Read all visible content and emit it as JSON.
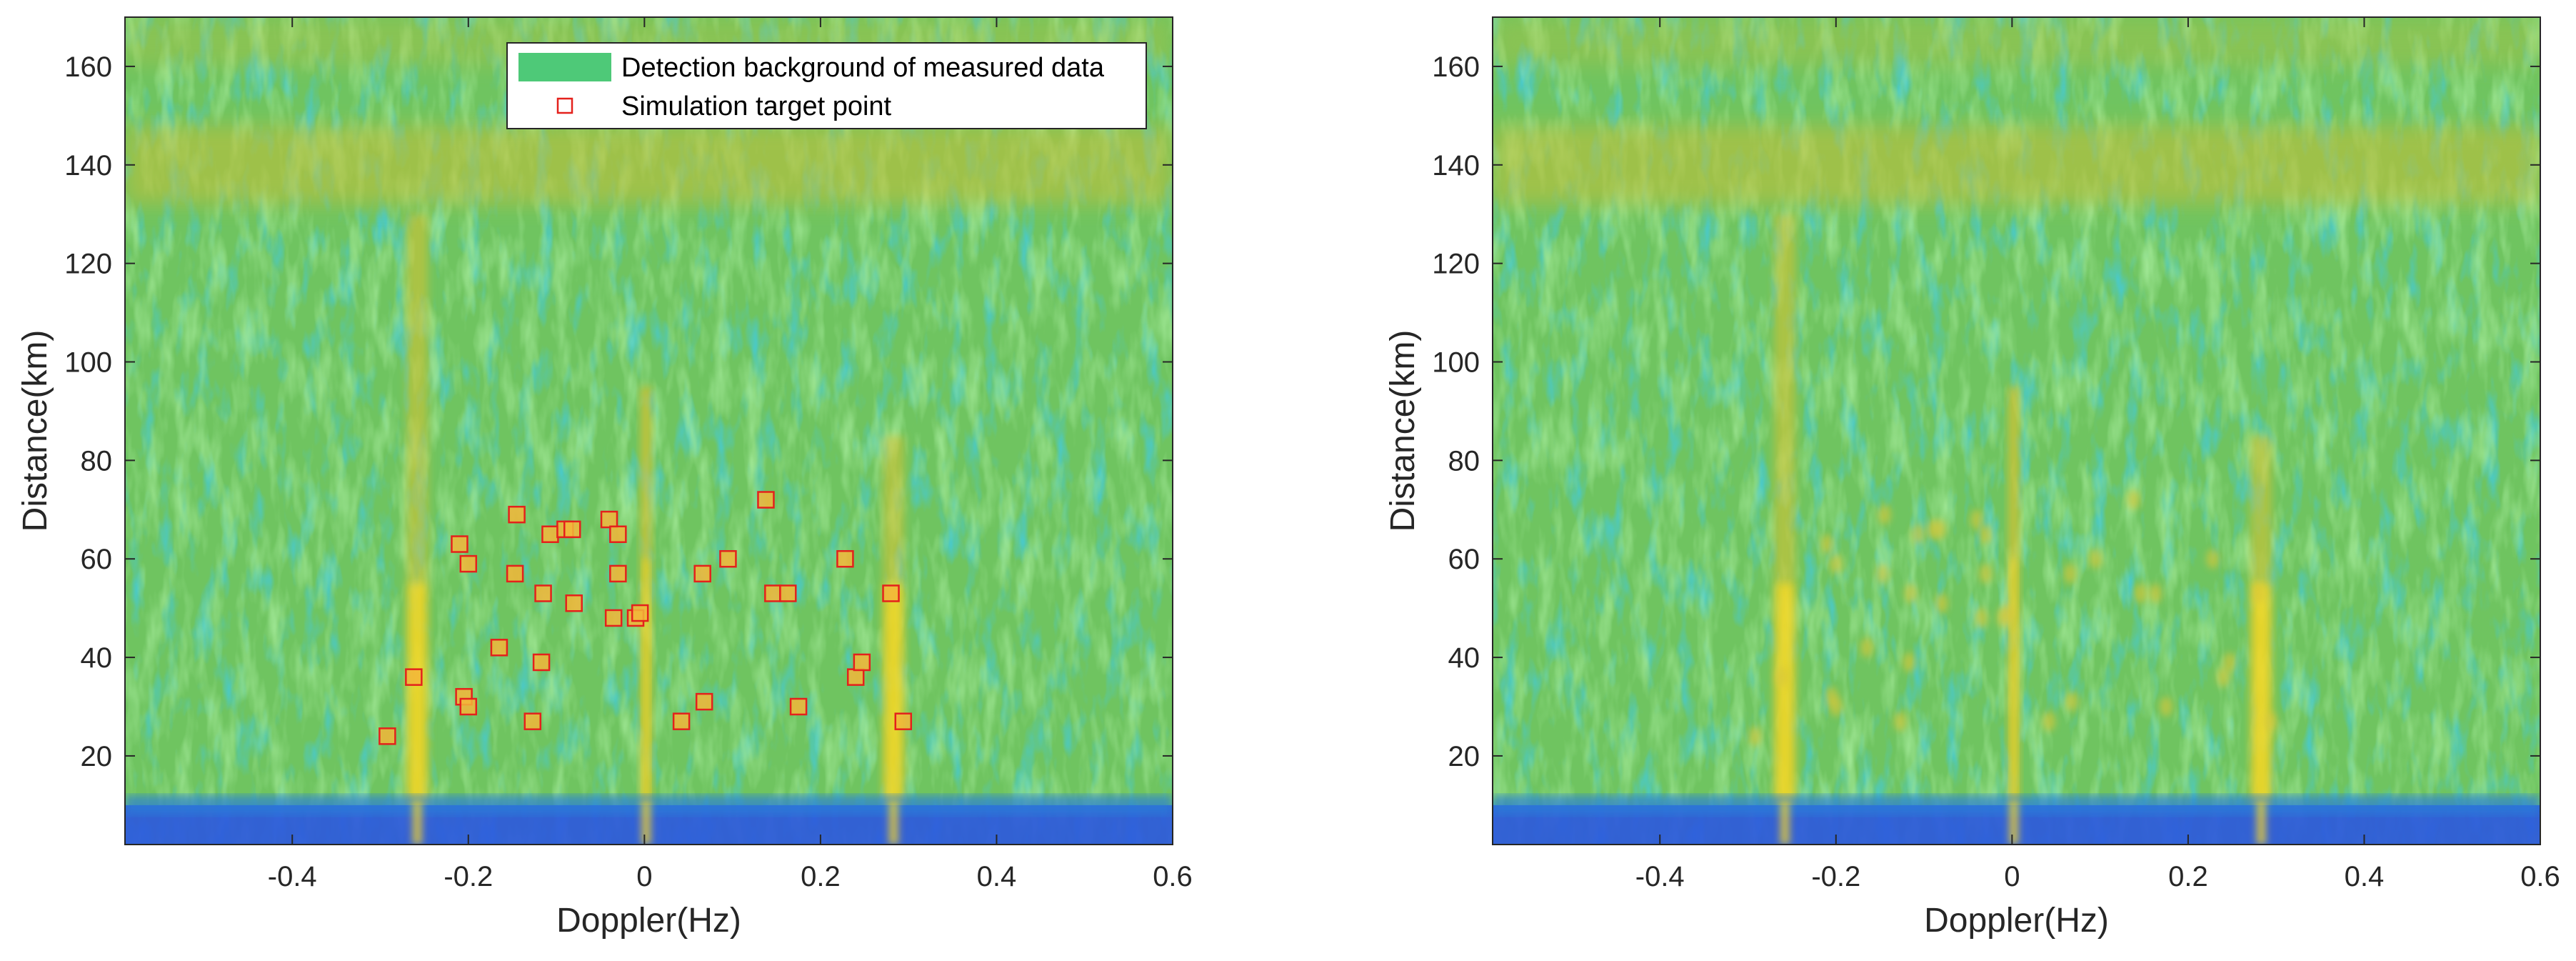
{
  "chart_data": [
    {
      "type": "heatmap",
      "title": "",
      "xlabel": "Doppler(Hz)",
      "ylabel": "Distance(km)",
      "xlim": [
        -0.59,
        0.6
      ],
      "ylim": [
        2,
        170
      ],
      "xticks": [
        -0.4,
        -0.2,
        0,
        0.2,
        0.4,
        0.6
      ],
      "xtick_labels": [
        "-0.4",
        "-0.2",
        "0",
        "0.2",
        "0.4",
        "0.6"
      ],
      "yticks": [
        20,
        40,
        60,
        80,
        100,
        120,
        140,
        160
      ],
      "ytick_labels": [
        "20",
        "40",
        "60",
        "80",
        "100",
        "120",
        "140",
        "160"
      ],
      "colormap": "parula",
      "legend": {
        "position": "top-right",
        "entries": [
          {
            "label": "Detection background of measured data",
            "kind": "patch",
            "color": "#4ec978"
          },
          {
            "label": "Simulation target point",
            "kind": "square-marker",
            "color": "#e4211c"
          }
        ]
      },
      "background_features": {
        "vertical_bright_streaks_hz": [
          -0.258,
          0.002,
          0.283
        ],
        "bright_band_km": 140,
        "low_floor_km": [
          2,
          10
        ]
      },
      "targets": [
        {
          "x": -0.292,
          "y": 24
        },
        {
          "x": -0.262,
          "y": 36
        },
        {
          "x": -0.21,
          "y": 63
        },
        {
          "x": -0.2,
          "y": 59
        },
        {
          "x": -0.205,
          "y": 32
        },
        {
          "x": -0.2,
          "y": 30
        },
        {
          "x": -0.165,
          "y": 42
        },
        {
          "x": -0.145,
          "y": 69
        },
        {
          "x": -0.147,
          "y": 57
        },
        {
          "x": -0.127,
          "y": 27
        },
        {
          "x": -0.117,
          "y": 39
        },
        {
          "x": -0.115,
          "y": 53
        },
        {
          "x": -0.107,
          "y": 65
        },
        {
          "x": -0.09,
          "y": 66
        },
        {
          "x": -0.082,
          "y": 66
        },
        {
          "x": -0.08,
          "y": 51
        },
        {
          "x": -0.04,
          "y": 68
        },
        {
          "x": -0.035,
          "y": 48
        },
        {
          "x": -0.03,
          "y": 65
        },
        {
          "x": -0.03,
          "y": 57
        },
        {
          "x": -0.01,
          "y": 48
        },
        {
          "x": -0.005,
          "y": 49
        },
        {
          "x": 0.042,
          "y": 27
        },
        {
          "x": 0.066,
          "y": 57
        },
        {
          "x": 0.068,
          "y": 31
        },
        {
          "x": 0.095,
          "y": 60
        },
        {
          "x": 0.138,
          "y": 72
        },
        {
          "x": 0.146,
          "y": 53
        },
        {
          "x": 0.163,
          "y": 53
        },
        {
          "x": 0.175,
          "y": 30
        },
        {
          "x": 0.228,
          "y": 60
        },
        {
          "x": 0.24,
          "y": 36
        },
        {
          "x": 0.247,
          "y": 39
        },
        {
          "x": 0.28,
          "y": 53
        },
        {
          "x": 0.294,
          "y": 27
        }
      ]
    },
    {
      "type": "heatmap",
      "title": "",
      "xlabel": "Doppler(Hz)",
      "ylabel": "Distance(km)",
      "xlim": [
        -0.59,
        0.6
      ],
      "ylim": [
        2,
        170
      ],
      "xticks": [
        -0.4,
        -0.2,
        0,
        0.2,
        0.4,
        0.6
      ],
      "xtick_labels": [
        "-0.4",
        "-0.2",
        "0",
        "0.2",
        "0.4",
        "0.6"
      ],
      "yticks": [
        20,
        40,
        60,
        80,
        100,
        120,
        140,
        160
      ],
      "ytick_labels": [
        "20",
        "40",
        "60",
        "80",
        "100",
        "120",
        "140",
        "160"
      ],
      "colormap": "parula",
      "background_features": {
        "vertical_bright_streaks_hz": [
          -0.258,
          0.002,
          0.283
        ],
        "bright_band_km": 140,
        "low_floor_km": [
          2,
          10
        ]
      },
      "targets": [
        {
          "x": -0.292,
          "y": 24
        },
        {
          "x": -0.262,
          "y": 36
        },
        {
          "x": -0.21,
          "y": 63
        },
        {
          "x": -0.2,
          "y": 59
        },
        {
          "x": -0.205,
          "y": 32
        },
        {
          "x": -0.2,
          "y": 30
        },
        {
          "x": -0.165,
          "y": 42
        },
        {
          "x": -0.145,
          "y": 69
        },
        {
          "x": -0.147,
          "y": 57
        },
        {
          "x": -0.127,
          "y": 27
        },
        {
          "x": -0.117,
          "y": 39
        },
        {
          "x": -0.115,
          "y": 53
        },
        {
          "x": -0.107,
          "y": 65
        },
        {
          "x": -0.09,
          "y": 66
        },
        {
          "x": -0.082,
          "y": 66
        },
        {
          "x": -0.08,
          "y": 51
        },
        {
          "x": -0.04,
          "y": 68
        },
        {
          "x": -0.035,
          "y": 48
        },
        {
          "x": -0.03,
          "y": 65
        },
        {
          "x": -0.03,
          "y": 57
        },
        {
          "x": -0.01,
          "y": 48
        },
        {
          "x": -0.005,
          "y": 49
        },
        {
          "x": 0.042,
          "y": 27
        },
        {
          "x": 0.066,
          "y": 57
        },
        {
          "x": 0.068,
          "y": 31
        },
        {
          "x": 0.095,
          "y": 60
        },
        {
          "x": 0.138,
          "y": 72
        },
        {
          "x": 0.146,
          "y": 53
        },
        {
          "x": 0.163,
          "y": 53
        },
        {
          "x": 0.175,
          "y": 30
        },
        {
          "x": 0.228,
          "y": 60
        },
        {
          "x": 0.24,
          "y": 36
        },
        {
          "x": 0.247,
          "y": 39
        },
        {
          "x": 0.28,
          "y": 53
        },
        {
          "x": 0.294,
          "y": 27
        }
      ]
    }
  ]
}
